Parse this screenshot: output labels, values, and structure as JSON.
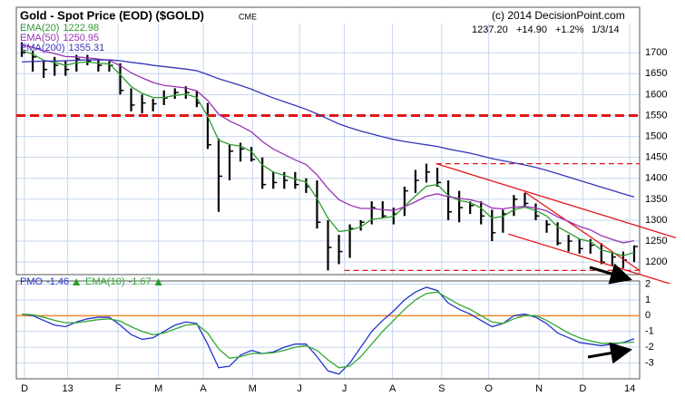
{
  "header": {
    "title": "Gold - Spot Price (EOD) ($GOLD)",
    "exchange": "CME",
    "copyright": "(c) 2014 DecisionPoint.com",
    "quote": {
      "last": "1237.20",
      "change": "+14.90",
      "percent": "+1.2%",
      "date": "1/3/14"
    }
  },
  "chart_data": [
    {
      "type": "ohlc",
      "ylim": [
        1170,
        1800
      ],
      "yticks": [
        1200,
        1250,
        1300,
        1350,
        1400,
        1450,
        1500,
        1550,
        1600,
        1650,
        1700
      ],
      "xlim": [
        -0.5,
        56.5
      ],
      "grid": true,
      "price": {
        "color": "#000000",
        "high": [
          1725,
          1705,
          1680,
          1690,
          1680,
          1695,
          1695,
          1685,
          1680,
          1675,
          1615,
          1600,
          1590,
          1610,
          1615,
          1620,
          1610,
          1580,
          1495,
          1480,
          1485,
          1475,
          1450,
          1415,
          1415,
          1415,
          1400,
          1395,
          1300,
          1265,
          1290,
          1300,
          1345,
          1345,
          1330,
          1380,
          1420,
          1435,
          1425,
          1395,
          1370,
          1345,
          1345,
          1325,
          1325,
          1360,
          1365,
          1340,
          1300,
          1295,
          1265,
          1255,
          1255,
          1245,
          1225,
          1225,
          1240
        ],
        "low": [
          1690,
          1655,
          1640,
          1645,
          1645,
          1655,
          1670,
          1655,
          1655,
          1600,
          1560,
          1555,
          1560,
          1575,
          1590,
          1590,
          1570,
          1470,
          1320,
          1395,
          1440,
          1440,
          1375,
          1375,
          1375,
          1375,
          1365,
          1280,
          1180,
          1195,
          1210,
          1275,
          1290,
          1305,
          1290,
          1310,
          1365,
          1390,
          1380,
          1300,
          1295,
          1315,
          1290,
          1250,
          1270,
          1310,
          1330,
          1300,
          1270,
          1240,
          1225,
          1220,
          1220,
          1195,
          1190,
          1185,
          1200
        ],
        "close": [
          1700,
          1690,
          1660,
          1670,
          1660,
          1685,
          1680,
          1670,
          1670,
          1610,
          1575,
          1580,
          1578,
          1592,
          1605,
          1605,
          1580,
          1480,
          1405,
          1465,
          1470,
          1445,
          1385,
          1390,
          1395,
          1385,
          1380,
          1295,
          1235,
          1225,
          1280,
          1295,
          1330,
          1310,
          1315,
          1370,
          1395,
          1415,
          1390,
          1320,
          1330,
          1335,
          1310,
          1270,
          1315,
          1350,
          1340,
          1310,
          1290,
          1245,
          1250,
          1232,
          1240,
          1200,
          1212,
          1205,
          1237.2
        ]
      },
      "series": [
        {
          "name": "EMA(20)",
          "color": "#2e9a2e",
          "values": [
            1705,
            1697,
            1682,
            1677,
            1670,
            1676,
            1678,
            1675,
            1673,
            1648,
            1619,
            1603,
            1593,
            1593,
            1598,
            1601,
            1593,
            1548,
            1491,
            1481,
            1477,
            1464,
            1432,
            1415,
            1407,
            1398,
            1391,
            1352,
            1305,
            1273,
            1276,
            1284,
            1302,
            1305,
            1309,
            1333,
            1358,
            1381,
            1385,
            1359,
            1347,
            1342,
            1329,
            1305,
            1309,
            1325,
            1331,
            1323,
            1310,
            1284,
            1270,
            1255,
            1249,
            1229,
            1222,
            1215,
            1222.98
          ]
        },
        {
          "name": "EMA(50)",
          "color": "#9b30b5",
          "values": [
            1718,
            1713,
            1704,
            1698,
            1691,
            1690,
            1688,
            1685,
            1682,
            1669,
            1652,
            1640,
            1629,
            1622,
            1619,
            1616,
            1609,
            1586,
            1553,
            1537,
            1525,
            1511,
            1488,
            1470,
            1457,
            1444,
            1433,
            1408,
            1376,
            1349,
            1336,
            1328,
            1328,
            1325,
            1323,
            1332,
            1344,
            1357,
            1363,
            1356,
            1352,
            1349,
            1342,
            1329,
            1327,
            1331,
            1333,
            1329,
            1322,
            1308,
            1297,
            1285,
            1277,
            1263,
            1254,
            1246,
            1250.95
          ]
        },
        {
          "name": "EMA(200)",
          "color": "#3535b8",
          "values": [
            1678,
            1679,
            1680,
            1680,
            1681,
            1682,
            1683,
            1683,
            1683,
            1681,
            1677,
            1674,
            1670,
            1667,
            1664,
            1661,
            1657,
            1648,
            1638,
            1630,
            1622,
            1613,
            1602,
            1592,
            1583,
            1574,
            1565,
            1554,
            1542,
            1530,
            1521,
            1513,
            1506,
            1499,
            1493,
            1488,
            1484,
            1480,
            1476,
            1470,
            1465,
            1460,
            1454,
            1447,
            1442,
            1437,
            1432,
            1426,
            1419,
            1411,
            1403,
            1395,
            1387,
            1379,
            1371,
            1363,
            1355.31
          ]
        }
      ],
      "hlines": [
        {
          "y": 1550,
          "color": "#e01818"
        }
      ],
      "segments": [
        {
          "x": [
            37.9,
            56.5
          ],
          "y": [
            1435,
            1435
          ],
          "color": "#e01818",
          "dashed": true
        },
        {
          "x": [
            29.5,
            56.5
          ],
          "y": [
            1180,
            1180
          ],
          "color": "#e01818",
          "dashed": true
        },
        {
          "x": [
            37.9,
            59.8
          ],
          "y": [
            1435,
            1258
          ],
          "color": "#e01818",
          "dashed": false
        },
        {
          "x": [
            46,
            56.5
          ],
          "y": [
            1367,
            1180
          ],
          "color": "#e01818",
          "dashed": false
        },
        {
          "x": [
            44.5,
            59.8
          ],
          "y": [
            1267,
            1144
          ],
          "color": "#e01818",
          "dashed": false
        }
      ]
    },
    {
      "type": "line",
      "ylim": [
        -4,
        2.2
      ],
      "yticks": [
        -3,
        -2,
        -1,
        0,
        1,
        2
      ],
      "xlim": [
        -0.5,
        56.5
      ],
      "zero_line_color": "#f08a30",
      "grid": true,
      "xticks": [
        {
          "value": 0.25,
          "label": "D"
        },
        {
          "value": 4.2,
          "label": "13"
        },
        {
          "value": 8.8,
          "label": "F"
        },
        {
          "value": 12.5,
          "label": "M"
        },
        {
          "value": 16.6,
          "label": "A"
        },
        {
          "value": 21.1,
          "label": "M"
        },
        {
          "value": 25.4,
          "label": "J"
        },
        {
          "value": 29.5,
          "label": "J"
        },
        {
          "value": 33.9,
          "label": "A"
        },
        {
          "value": 38.4,
          "label": "S"
        },
        {
          "value": 42.7,
          "label": "O"
        },
        {
          "value": 47.3,
          "label": "N"
        },
        {
          "value": 51.3,
          "label": "D"
        },
        {
          "value": 55.6,
          "label": "14"
        }
      ],
      "series": [
        {
          "name": "PMO",
          "color": "#2233cc",
          "values": [
            0.1,
            0,
            -0.3,
            -0.6,
            -0.7,
            -0.4,
            -0.2,
            -0.1,
            -0.1,
            -0.6,
            -1.2,
            -1.5,
            -1.4,
            -1.0,
            -0.6,
            -0.4,
            -0.5,
            -1.8,
            -3.3,
            -3.2,
            -2.5,
            -2.2,
            -2.4,
            -2.3,
            -2.0,
            -1.8,
            -1.8,
            -2.6,
            -3.5,
            -3.7,
            -3.0,
            -2.0,
            -1.0,
            -0.3,
            0.3,
            1.0,
            1.5,
            1.8,
            1.6,
            0.8,
            0.4,
            0.1,
            -0.3,
            -0.7,
            -0.5,
            0,
            0.1,
            -0.1,
            -0.5,
            -1.1,
            -1.4,
            -1.7,
            -1.8,
            -1.9,
            -1.8,
            -1.7,
            -1.46
          ]
        },
        {
          "name": "EMA(10)",
          "color": "#33a833",
          "values": [
            0.1,
            0.05,
            -0.1,
            -0.3,
            -0.45,
            -0.45,
            -0.35,
            -0.25,
            -0.2,
            -0.35,
            -0.7,
            -1.0,
            -1.2,
            -1.1,
            -0.85,
            -0.6,
            -0.55,
            -1.1,
            -2.1,
            -2.7,
            -2.6,
            -2.4,
            -2.4,
            -2.35,
            -2.2,
            -2.0,
            -1.9,
            -2.2,
            -2.8,
            -3.3,
            -3.2,
            -2.6,
            -1.8,
            -1.0,
            -0.3,
            0.4,
            1.0,
            1.4,
            1.5,
            1.1,
            0.7,
            0.4,
            0.0,
            -0.4,
            -0.5,
            -0.2,
            0.0,
            0.0,
            -0.3,
            -0.7,
            -1.1,
            -1.4,
            -1.6,
            -1.75,
            -1.75,
            -1.72,
            -1.67
          ]
        }
      ]
    }
  ]
}
